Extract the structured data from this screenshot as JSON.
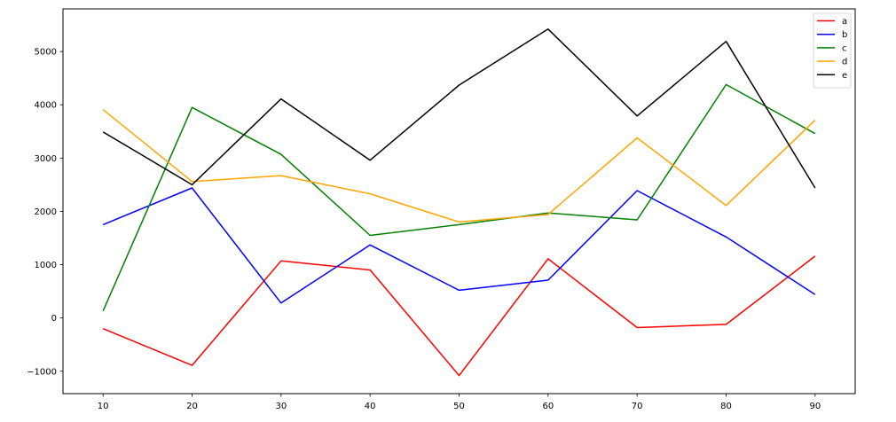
{
  "chart_data": {
    "type": "line",
    "title": "",
    "xlabel": "",
    "ylabel": "",
    "x": [
      10,
      20,
      30,
      40,
      50,
      60,
      70,
      80,
      90
    ],
    "xlim": [
      5.5,
      94.5
    ],
    "ylim": [
      -1420,
      5800
    ],
    "xticks": [
      10,
      20,
      30,
      40,
      50,
      60,
      70,
      80,
      90
    ],
    "yticks": [
      -1000,
      0,
      1000,
      2000,
      3000,
      4000,
      5000
    ],
    "ytick_labels": [
      "−1000",
      "0",
      "1000",
      "2000",
      "3000",
      "4000",
      "5000"
    ],
    "grid": false,
    "legend_position": "top-right",
    "series": [
      {
        "name": "a",
        "color": "#ff0000",
        "values": [
          -200,
          -890,
          1070,
          900,
          -1080,
          1110,
          -180,
          -120,
          1160
        ]
      },
      {
        "name": "b",
        "color": "#0000ff",
        "values": [
          1750,
          2440,
          280,
          1370,
          520,
          710,
          2390,
          1520,
          440
        ]
      },
      {
        "name": "c",
        "color": "#008000",
        "values": [
          130,
          3950,
          3070,
          1550,
          1750,
          1970,
          1840,
          4380,
          3460
        ]
      },
      {
        "name": "d",
        "color": "#ffa500",
        "values": [
          3910,
          2560,
          2670,
          2330,
          1800,
          1940,
          3380,
          2110,
          3710
        ]
      },
      {
        "name": "e",
        "color": "#000000",
        "values": [
          3490,
          2500,
          4110,
          2960,
          4370,
          5420,
          3790,
          5190,
          2440
        ]
      }
    ]
  }
}
